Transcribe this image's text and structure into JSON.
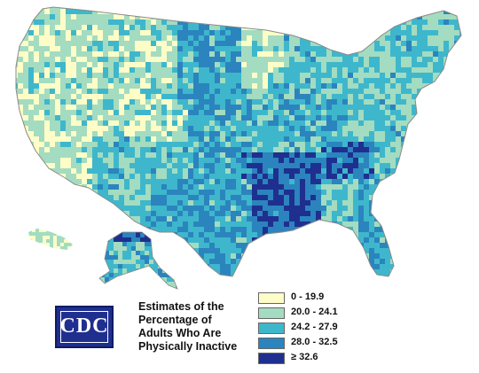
{
  "colors": {
    "c0": "#fefdc8",
    "c1": "#a3dcc0",
    "c2": "#3eb7cc",
    "c3": "#2b84bd",
    "c4": "#1f2f8f",
    "outline": "#8a8a8a"
  },
  "logo": {
    "text": "CDC"
  },
  "title": "Estimates of the\nPercentage of\nAdults Who Are\nPhysically Inactive",
  "legend": [
    {
      "label": "0 - 19.9",
      "color": "#fefdc8"
    },
    {
      "label": "20.0 - 24.1",
      "color": "#a3dcc0"
    },
    {
      "label": "24.2 - 27.9",
      "color": "#3eb7cc"
    },
    {
      "label": "28.0 - 32.5",
      "color": "#2b84bd"
    },
    {
      "label": "≥ 32.6",
      "color": "#1f2f8f"
    }
  ]
}
